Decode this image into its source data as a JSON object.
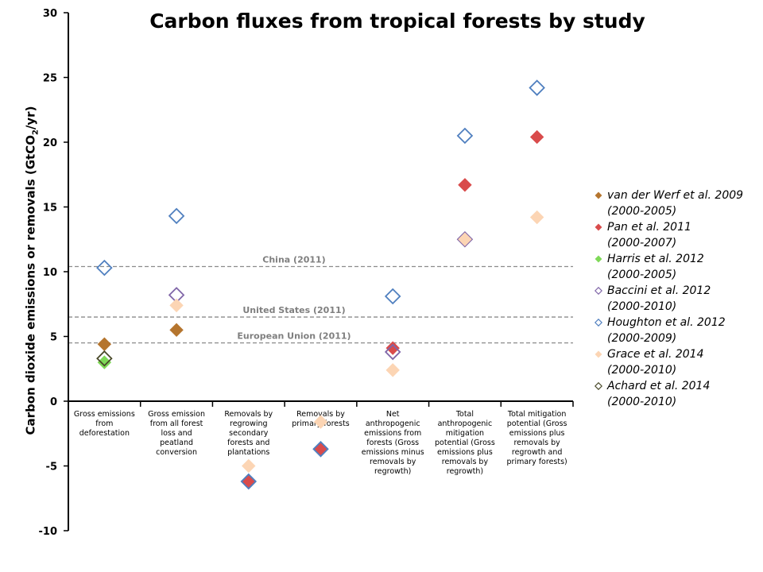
{
  "chart_data": {
    "type": "scatter",
    "title": "Carbon fluxes from tropical forests by study",
    "ylabel": "Carbon dioxide emissions or removals (GtCO2/yr)",
    "ylabel_main": "Carbon dioxide emissions or removals (GtCO",
    "ylabel_sub": "2",
    "ylabel_end": "/yr)",
    "ylim": [
      -10,
      30
    ],
    "yticks": [
      "30",
      "25",
      "20",
      "15",
      "10",
      "5",
      "0",
      "-5",
      "-10"
    ],
    "ytick_values": [
      30,
      25,
      20,
      15,
      10,
      5,
      0,
      -5,
      -10
    ],
    "categories": [
      [
        "Gross emissions",
        "from",
        "deforestation"
      ],
      [
        "Gross emission",
        "from all forest",
        "loss and",
        "peatland",
        "conversion"
      ],
      [
        "Removals by",
        "regrowing",
        "secondary",
        "forests and",
        "plantations"
      ],
      [
        "Removals by",
        "primary forests"
      ],
      [
        "Net",
        "anthropogenic",
        "emissions from",
        "forests (Gross",
        "emissions minus",
        "removals by",
        "regrowth)"
      ],
      [
        "Total",
        "anthropogenic",
        "mitigation",
        "potential (Gross",
        "emissions plus",
        "removals by",
        "regrowth)"
      ],
      [
        "Total mitigation",
        "potential (Gross",
        "emissions plus",
        "removals by",
        "regrowth and",
        "primary forests)"
      ]
    ],
    "reference_lines": [
      {
        "label": "China (2011)",
        "value": 10.4
      },
      {
        "label": "United States (2011)",
        "value": 6.5
      },
      {
        "label": "European Union (2011)",
        "value": 4.5
      }
    ],
    "series": [
      {
        "name": "van der Werf et al. 2009",
        "period": "(2000-2005)",
        "color": "#b5752e",
        "filled": true,
        "values": [
          4.4,
          5.5,
          null,
          null,
          null,
          null,
          null
        ]
      },
      {
        "name": "Pan et al. 2011",
        "period": "(2000-2007)",
        "color": "#d94b4b",
        "filled": true,
        "values": [
          null,
          null,
          -6.2,
          -3.7,
          4.1,
          16.7,
          20.4
        ]
      },
      {
        "name": "Harris et al. 2012",
        "period": "(2000-2005)",
        "color": "#7ed957",
        "filled": true,
        "values": [
          3.0,
          null,
          null,
          null,
          null,
          null,
          null
        ]
      },
      {
        "name": "Baccini et al. 2012",
        "period": "(2000-2010)",
        "color": "#8066a8",
        "filled": false,
        "values": [
          null,
          8.2,
          null,
          null,
          3.8,
          12.5,
          null
        ]
      },
      {
        "name": "Houghton et al. 2012",
        "period": "(2000-2009)",
        "color": "#4f7fbf",
        "filled": false,
        "values": [
          10.3,
          14.3,
          -6.2,
          -3.7,
          8.1,
          20.5,
          24.2
        ]
      },
      {
        "name": "Grace et al. 2014",
        "period": "(2000-2010)",
        "color": "#fcd5b4",
        "filled": true,
        "values": [
          null,
          7.4,
          -5.0,
          -1.6,
          2.4,
          12.5,
          14.2
        ]
      },
      {
        "name": "Achard et al. 2014",
        "period": "(2000-2010)",
        "color": "#4a4a2a",
        "filled": false,
        "values": [
          3.3,
          null,
          null,
          null,
          null,
          null,
          null
        ]
      }
    ]
  }
}
